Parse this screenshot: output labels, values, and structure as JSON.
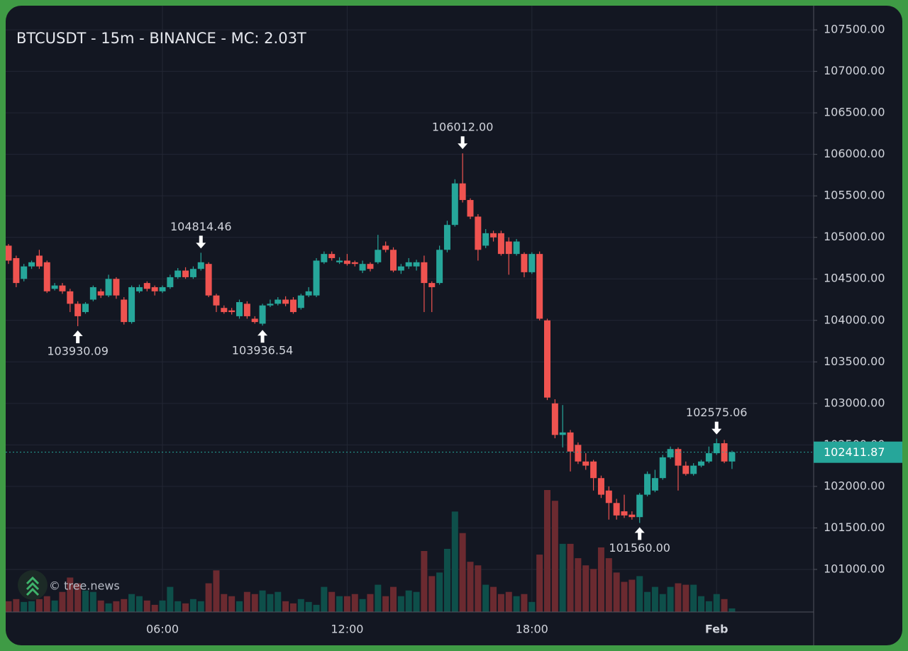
{
  "chart_data": {
    "type": "candlestick",
    "title": "BTCUSDT - 15m - BINANCE - MC: 2.03T",
    "watermark": "© tree.news",
    "categories": [
      null,
      null,
      null,
      null,
      null,
      null,
      null,
      null,
      null,
      null,
      null,
      null,
      null,
      null,
      null,
      null,
      null,
      null,
      null,
      null,
      "06:00",
      null,
      null,
      null,
      null,
      null,
      null,
      null,
      null,
      null,
      null,
      null,
      null,
      null,
      null,
      null,
      null,
      null,
      null,
      null,
      null,
      null,
      null,
      null,
      "12:00",
      null,
      null,
      null,
      null,
      null,
      null,
      null,
      null,
      null,
      null,
      null,
      null,
      null,
      null,
      null,
      null,
      null,
      null,
      null,
      null,
      null,
      null,
      null,
      "18:00",
      null,
      null,
      null,
      null,
      null,
      null,
      null,
      null,
      null,
      null,
      null,
      null,
      null,
      null,
      null,
      null,
      null,
      null,
      null,
      null,
      null,
      null,
      null,
      "Feb",
      null,
      null
    ],
    "open": [
      104900,
      104750,
      104500,
      104650,
      104780,
      104700,
      104380,
      104420,
      104350,
      104200,
      104100,
      104250,
      104350,
      104300,
      104500,
      104250,
      103980,
      104350,
      104450,
      104400,
      104350,
      104400,
      104520,
      104600,
      104520,
      104620,
      104680,
      104300,
      104150,
      104120,
      104050,
      104200,
      104020,
      103960,
      104180,
      104200,
      104250,
      104250,
      104150,
      104300,
      104300,
      104700,
      104800,
      104700,
      104720,
      104700,
      104600,
      104680,
      104700,
      104900,
      104850,
      104600,
      104650,
      104650,
      104700,
      104450,
      104450,
      104850,
      105150,
      105650,
      105450,
      105250,
      104900,
      105050,
      105050,
      104950,
      104800,
      104800,
      104580,
      104800,
      104000,
      103000,
      102620,
      102650,
      102500,
      102300,
      102300,
      102100,
      101950,
      101800,
      101700,
      101660,
      101630,
      101900,
      101950,
      102100,
      102350,
      102450,
      102250,
      102150,
      102250,
      102300,
      102400,
      102520,
      102300
    ],
    "high": [
      104920,
      104780,
      104680,
      104720,
      104850,
      104720,
      104450,
      104450,
      104380,
      104230,
      104220,
      104420,
      104380,
      104550,
      104520,
      104280,
      104420,
      104430,
      104470,
      104420,
      104420,
      104550,
      104630,
      104640,
      104650,
      104814.46,
      104700,
      104320,
      104180,
      104150,
      104250,
      104230,
      104050,
      104200,
      104250,
      104280,
      104290,
      104280,
      104320,
      104400,
      104750,
      104830,
      104830,
      104760,
      104800,
      104720,
      104720,
      104700,
      105030,
      104950,
      104880,
      104680,
      104750,
      104730,
      104780,
      104470,
      104900,
      105200,
      105700,
      106012,
      105470,
      105280,
      105100,
      105080,
      105080,
      105000,
      104980,
      104820,
      104820,
      104830,
      104020,
      103050,
      102980,
      102680,
      102530,
      102400,
      102320,
      102130,
      102000,
      101850,
      101900,
      101700,
      101920,
      102180,
      102200,
      102380,
      102480,
      102470,
      102300,
      102280,
      102320,
      102480,
      102575.06,
      102560,
      102430
    ],
    "low": [
      104680,
      104400,
      104470,
      104620,
      104620,
      104330,
      104360,
      104320,
      104100,
      103930.09,
      104080,
      104230,
      104270,
      104280,
      104260,
      103950,
      103960,
      104330,
      104350,
      104300,
      104330,
      104380,
      104500,
      104500,
      104500,
      104600,
      104280,
      104100,
      104080,
      104070,
      104020,
      104020,
      103960,
      103936.54,
      104160,
      104180,
      104170,
      104080,
      104130,
      104280,
      104280,
      104680,
      104720,
      104680,
      104660,
      104650,
      104570,
      104590,
      104680,
      104820,
      104580,
      104560,
      104620,
      104600,
      104100,
      104100,
      104430,
      104820,
      105130,
      105420,
      105220,
      104720,
      104870,
      104950,
      104780,
      104550,
      104780,
      104520,
      104560,
      104000,
      103040,
      102580,
      102470,
      102180,
      102270,
      102200,
      101950,
      101860,
      101600,
      101600,
      101620,
      101600,
      101560,
      101880,
      101930,
      102080,
      102330,
      101950,
      102130,
      102130,
      102230,
      102280,
      102380,
      102280,
      102210
    ],
    "close": [
      104720,
      104450,
      104650,
      104700,
      104650,
      104350,
      104420,
      104350,
      104200,
      104050,
      104200,
      104400,
      104300,
      104500,
      104300,
      103980,
      104400,
      104400,
      104380,
      104350,
      104400,
      104520,
      104600,
      104520,
      104620,
      104700,
      104300,
      104180,
      104100,
      104100,
      104220,
      104050,
      103980,
      104180,
      104200,
      104250,
      104200,
      104100,
      104300,
      104350,
      104720,
      104800,
      104750,
      104720,
      104680,
      104680,
      104680,
      104620,
      104850,
      104850,
      104600,
      104650,
      104700,
      104700,
      104450,
      104400,
      104850,
      105150,
      105650,
      105450,
      105250,
      104850,
      105050,
      105000,
      104800,
      104800,
      104950,
      104580,
      104800,
      104020,
      103070,
      102620,
      102650,
      102420,
      102300,
      102250,
      102100,
      101900,
      101800,
      101650,
      101650,
      101630,
      101900,
      102150,
      102100,
      102350,
      102450,
      102250,
      102150,
      102250,
      102300,
      102400,
      102520,
      102300,
      102411.87
    ],
    "volume": [
      15,
      18,
      14,
      15,
      18,
      22,
      16,
      28,
      48,
      40,
      30,
      28,
      16,
      12,
      15,
      18,
      25,
      22,
      16,
      10,
      16,
      35,
      15,
      12,
      18,
      15,
      40,
      58,
      25,
      22,
      15,
      28,
      25,
      30,
      25,
      28,
      15,
      12,
      18,
      14,
      10,
      35,
      28,
      22,
      22,
      25,
      18,
      25,
      38,
      22,
      35,
      22,
      30,
      28,
      85,
      50,
      55,
      88,
      140,
      110,
      70,
      65,
      38,
      35,
      25,
      28,
      22,
      25,
      14,
      80,
      170,
      155,
      95,
      95,
      75,
      65,
      60,
      90,
      75,
      55,
      42,
      45,
      50,
      28,
      35,
      25,
      35,
      40,
      38,
      38,
      22,
      15,
      25,
      18,
      5
    ],
    "up_color": "#26a69a",
    "down_color": "#ef5350",
    "volume_up_color": "#0e4f4a",
    "volume_down_color": "#6b2a30",
    "last_price": 102411.87,
    "annotations": [
      {
        "index": 9,
        "value": 103930.09,
        "label": "103930.09",
        "dir": "up"
      },
      {
        "index": 25,
        "value": 104814.46,
        "label": "104814.46",
        "dir": "down"
      },
      {
        "index": 33,
        "value": 103936.54,
        "label": "103936.54",
        "dir": "up"
      },
      {
        "index": 59,
        "value": 106012,
        "label": "106012.00",
        "dir": "down"
      },
      {
        "index": 82,
        "value": 101560,
        "label": "101560.00",
        "dir": "up"
      },
      {
        "index": 92,
        "value": 102575.06,
        "label": "102575.06",
        "dir": "down"
      }
    ],
    "ylim": [
      100487,
      107791
    ],
    "yticks": [
      {
        "value": 101000,
        "label": "101000.00"
      },
      {
        "value": 101500,
        "label": "101500.00"
      },
      {
        "value": 102000,
        "label": "102000.00"
      },
      {
        "value": 102500,
        "label": "102500.00"
      },
      {
        "value": 103000,
        "label": "103000.00"
      },
      {
        "value": 103500,
        "label": "103500.00"
      },
      {
        "value": 104000,
        "label": "104000.00"
      },
      {
        "value": 104500,
        "label": "104500.00"
      },
      {
        "value": 105000,
        "label": "105000.00"
      },
      {
        "value": 105500,
        "label": "105500.00"
      },
      {
        "value": 106000,
        "label": "106000.00"
      },
      {
        "value": 106500,
        "label": "106500.00"
      },
      {
        "value": 107000,
        "label": "107000.00"
      },
      {
        "value": 107500,
        "label": "107500.00"
      }
    ],
    "grid": true
  }
}
